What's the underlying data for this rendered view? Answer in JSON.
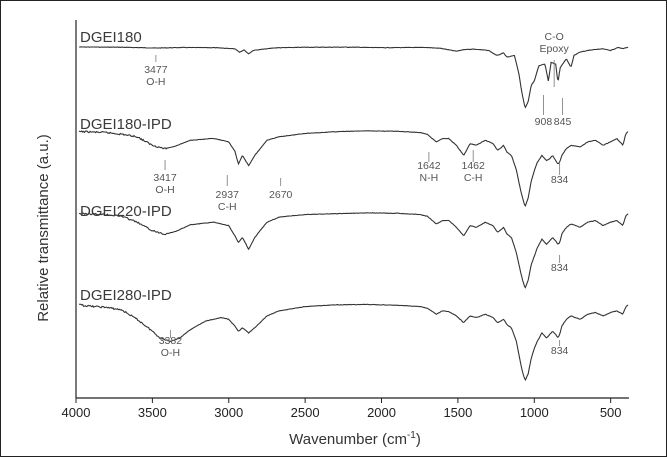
{
  "chart_data": {
    "type": "line",
    "title": "",
    "xlabel": "Wavenumber (cm",
    "xlabel_sup": "-1",
    "xlabel_close": ")",
    "ylabel": "Relative transmittance (a.u.)",
    "xlim": [
      4000,
      380
    ],
    "x_reversed": true,
    "xticks": [
      "4000",
      "3500",
      "3000",
      "2500",
      "2000",
      "1500",
      "1000",
      "500"
    ],
    "grid": false,
    "series": [
      {
        "name": "DGEI180",
        "points": [
          [
            3950,
            0.0
          ],
          [
            3700,
            0.3
          ],
          [
            3477,
            1.2
          ],
          [
            3300,
            0.6
          ],
          [
            3100,
            0.8
          ],
          [
            2960,
            2.0
          ],
          [
            2930,
            6
          ],
          [
            2900,
            3.5
          ],
          [
            2870,
            8
          ],
          [
            2840,
            4
          ],
          [
            2700,
            1.0
          ],
          [
            2500,
            0.3
          ],
          [
            2200,
            0.2
          ],
          [
            2000,
            0.8
          ],
          [
            1800,
            0.6
          ],
          [
            1700,
            0.6
          ],
          [
            1610,
            1.6
          ],
          [
            1510,
            5
          ],
          [
            1460,
            3
          ],
          [
            1400,
            2.5
          ],
          [
            1300,
            4
          ],
          [
            1245,
            10
          ],
          [
            1200,
            7
          ],
          [
            1180,
            12
          ],
          [
            1130,
            10
          ],
          [
            1100,
            32
          ],
          [
            1080,
            55
          ],
          [
            1060,
            72
          ],
          [
            1040,
            64
          ],
          [
            1020,
            45
          ],
          [
            1000,
            40
          ],
          [
            970,
            22
          ],
          [
            930,
            20
          ],
          [
            908,
            40
          ],
          [
            890,
            18
          ],
          [
            860,
            20
          ],
          [
            845,
            42
          ],
          [
            830,
            24
          ],
          [
            790,
            14
          ],
          [
            760,
            24
          ],
          [
            740,
            10
          ],
          [
            700,
            6
          ],
          [
            650,
            4
          ],
          [
            600,
            3
          ],
          [
            550,
            2
          ],
          [
            500,
            4
          ],
          [
            450,
            0.5
          ],
          [
            420,
            2
          ],
          [
            385,
            0
          ]
        ]
      },
      {
        "name": "DGEI180-IPD",
        "points": [
          [
            3950,
            2
          ],
          [
            3800,
            3
          ],
          [
            3700,
            5
          ],
          [
            3600,
            8
          ],
          [
            3500,
            18
          ],
          [
            3417,
            22
          ],
          [
            3350,
            19
          ],
          [
            3250,
            12
          ],
          [
            3100,
            10
          ],
          [
            3000,
            14
          ],
          [
            2960,
            25
          ],
          [
            2937,
            40
          ],
          [
            2910,
            30
          ],
          [
            2870,
            42
          ],
          [
            2830,
            30
          ],
          [
            2750,
            12
          ],
          [
            2670,
            8
          ],
          [
            2500,
            4
          ],
          [
            2300,
            2
          ],
          [
            2100,
            1
          ],
          [
            1900,
            1.5
          ],
          [
            1750,
            3
          ],
          [
            1700,
            5
          ],
          [
            1642,
            14
          ],
          [
            1600,
            10
          ],
          [
            1560,
            10
          ],
          [
            1510,
            18
          ],
          [
            1462,
            30
          ],
          [
            1420,
            16
          ],
          [
            1380,
            18
          ],
          [
            1320,
            12
          ],
          [
            1270,
            16
          ],
          [
            1240,
            24
          ],
          [
            1200,
            18
          ],
          [
            1180,
            26
          ],
          [
            1150,
            30
          ],
          [
            1120,
            45
          ],
          [
            1100,
            62
          ],
          [
            1080,
            78
          ],
          [
            1060,
            90
          ],
          [
            1040,
            80
          ],
          [
            1020,
            60
          ],
          [
            1000,
            48
          ],
          [
            980,
            38
          ],
          [
            950,
            30
          ],
          [
            920,
            36
          ],
          [
            900,
            34
          ],
          [
            880,
            30
          ],
          [
            860,
            36
          ],
          [
            845,
            40
          ],
          [
            834,
            38
          ],
          [
            820,
            30
          ],
          [
            790,
            22
          ],
          [
            760,
            18
          ],
          [
            700,
            20
          ],
          [
            650,
            14
          ],
          [
            600,
            12
          ],
          [
            550,
            18
          ],
          [
            500,
            14
          ],
          [
            460,
            10
          ],
          [
            420,
            18
          ],
          [
            400,
            4
          ],
          [
            385,
            2
          ]
        ]
      },
      {
        "name": "DGEI220-IPD",
        "points": [
          [
            3950,
            2
          ],
          [
            3800,
            3
          ],
          [
            3700,
            5
          ],
          [
            3600,
            12
          ],
          [
            3500,
            22
          ],
          [
            3417,
            26
          ],
          [
            3350,
            23
          ],
          [
            3250,
            15
          ],
          [
            3100,
            12
          ],
          [
            3000,
            16
          ],
          [
            2960,
            28
          ],
          [
            2937,
            36
          ],
          [
            2910,
            30
          ],
          [
            2870,
            44
          ],
          [
            2830,
            30
          ],
          [
            2750,
            12
          ],
          [
            2670,
            6
          ],
          [
            2500,
            3
          ],
          [
            2300,
            2
          ],
          [
            2100,
            1
          ],
          [
            1900,
            1.5
          ],
          [
            1750,
            3
          ],
          [
            1700,
            5
          ],
          [
            1642,
            14
          ],
          [
            1600,
            10
          ],
          [
            1560,
            10
          ],
          [
            1510,
            18
          ],
          [
            1462,
            28
          ],
          [
            1420,
            16
          ],
          [
            1380,
            18
          ],
          [
            1320,
            12
          ],
          [
            1270,
            16
          ],
          [
            1240,
            24
          ],
          [
            1200,
            18
          ],
          [
            1180,
            26
          ],
          [
            1150,
            30
          ],
          [
            1120,
            46
          ],
          [
            1100,
            62
          ],
          [
            1080,
            78
          ],
          [
            1060,
            90
          ],
          [
            1040,
            80
          ],
          [
            1020,
            62
          ],
          [
            1000,
            52
          ],
          [
            980,
            42
          ],
          [
            950,
            32
          ],
          [
            920,
            38
          ],
          [
            900,
            34
          ],
          [
            880,
            30
          ],
          [
            860,
            34
          ],
          [
            845,
            38
          ],
          [
            834,
            36
          ],
          [
            820,
            26
          ],
          [
            790,
            18
          ],
          [
            760,
            14
          ],
          [
            700,
            18
          ],
          [
            650,
            12
          ],
          [
            600,
            10
          ],
          [
            550,
            16
          ],
          [
            500,
            12
          ],
          [
            460,
            10
          ],
          [
            420,
            16
          ],
          [
            400,
            4
          ],
          [
            385,
            2
          ]
        ]
      },
      {
        "name": "DGEI280-IPD",
        "points": [
          [
            3950,
            2
          ],
          [
            3800,
            4
          ],
          [
            3700,
            7
          ],
          [
            3600,
            18
          ],
          [
            3500,
            32
          ],
          [
            3450,
            40
          ],
          [
            3382,
            44
          ],
          [
            3320,
            40
          ],
          [
            3250,
            30
          ],
          [
            3150,
            20
          ],
          [
            3050,
            16
          ],
          [
            3000,
            18
          ],
          [
            2960,
            26
          ],
          [
            2937,
            32
          ],
          [
            2910,
            28
          ],
          [
            2870,
            34
          ],
          [
            2830,
            28
          ],
          [
            2750,
            14
          ],
          [
            2670,
            8
          ],
          [
            2500,
            3
          ],
          [
            2300,
            1
          ],
          [
            2100,
            0.5
          ],
          [
            1900,
            1.5
          ],
          [
            1750,
            3
          ],
          [
            1700,
            5
          ],
          [
            1642,
            12
          ],
          [
            1600,
            8
          ],
          [
            1560,
            9
          ],
          [
            1510,
            14
          ],
          [
            1462,
            22
          ],
          [
            1420,
            14
          ],
          [
            1380,
            16
          ],
          [
            1320,
            12
          ],
          [
            1270,
            16
          ],
          [
            1240,
            22
          ],
          [
            1200,
            18
          ],
          [
            1180,
            24
          ],
          [
            1150,
            28
          ],
          [
            1120,
            42
          ],
          [
            1100,
            60
          ],
          [
            1080,
            78
          ],
          [
            1060,
            90
          ],
          [
            1040,
            82
          ],
          [
            1020,
            64
          ],
          [
            1000,
            52
          ],
          [
            980,
            44
          ],
          [
            950,
            34
          ],
          [
            920,
            40
          ],
          [
            900,
            36
          ],
          [
            880,
            32
          ],
          [
            860,
            36
          ],
          [
            845,
            40
          ],
          [
            834,
            36
          ],
          [
            820,
            26
          ],
          [
            790,
            18
          ],
          [
            760,
            14
          ],
          [
            700,
            18
          ],
          [
            650,
            12
          ],
          [
            600,
            10
          ],
          [
            550,
            14
          ],
          [
            500,
            10
          ],
          [
            460,
            8
          ],
          [
            420,
            12
          ],
          [
            400,
            3
          ],
          [
            385,
            1
          ]
        ]
      }
    ],
    "annotations": [
      {
        "series": 0,
        "lines": [
          "3477",
          "O-H"
        ],
        "x": 3477
      },
      {
        "series": 0,
        "lines": [
          "C-O",
          "Epoxy"
        ],
        "x": 870
      },
      {
        "series": 0,
        "lines": [
          "908"
        ],
        "x": 940
      },
      {
        "series": 0,
        "lines": [
          "845"
        ],
        "x": 815
      },
      {
        "series": 1,
        "lines": [
          "3417",
          "O-H"
        ],
        "x": 3417
      },
      {
        "series": 1,
        "lines": [
          "2937",
          "C-H"
        ],
        "x": 3010
      },
      {
        "series": 1,
        "lines": [
          "2670"
        ],
        "x": 2660
      },
      {
        "series": 1,
        "lines": [
          "1642",
          "N-H"
        ],
        "x": 1690
      },
      {
        "series": 1,
        "lines": [
          "1462",
          "C-H"
        ],
        "x": 1400
      },
      {
        "series": 1,
        "lines": [
          "834"
        ],
        "x": 834
      },
      {
        "series": 2,
        "lines": [
          "834"
        ],
        "x": 834
      },
      {
        "series": 3,
        "lines": [
          "3382",
          "O-H"
        ],
        "x": 3382
      },
      {
        "series": 3,
        "lines": [
          "834"
        ],
        "x": 834
      }
    ]
  }
}
